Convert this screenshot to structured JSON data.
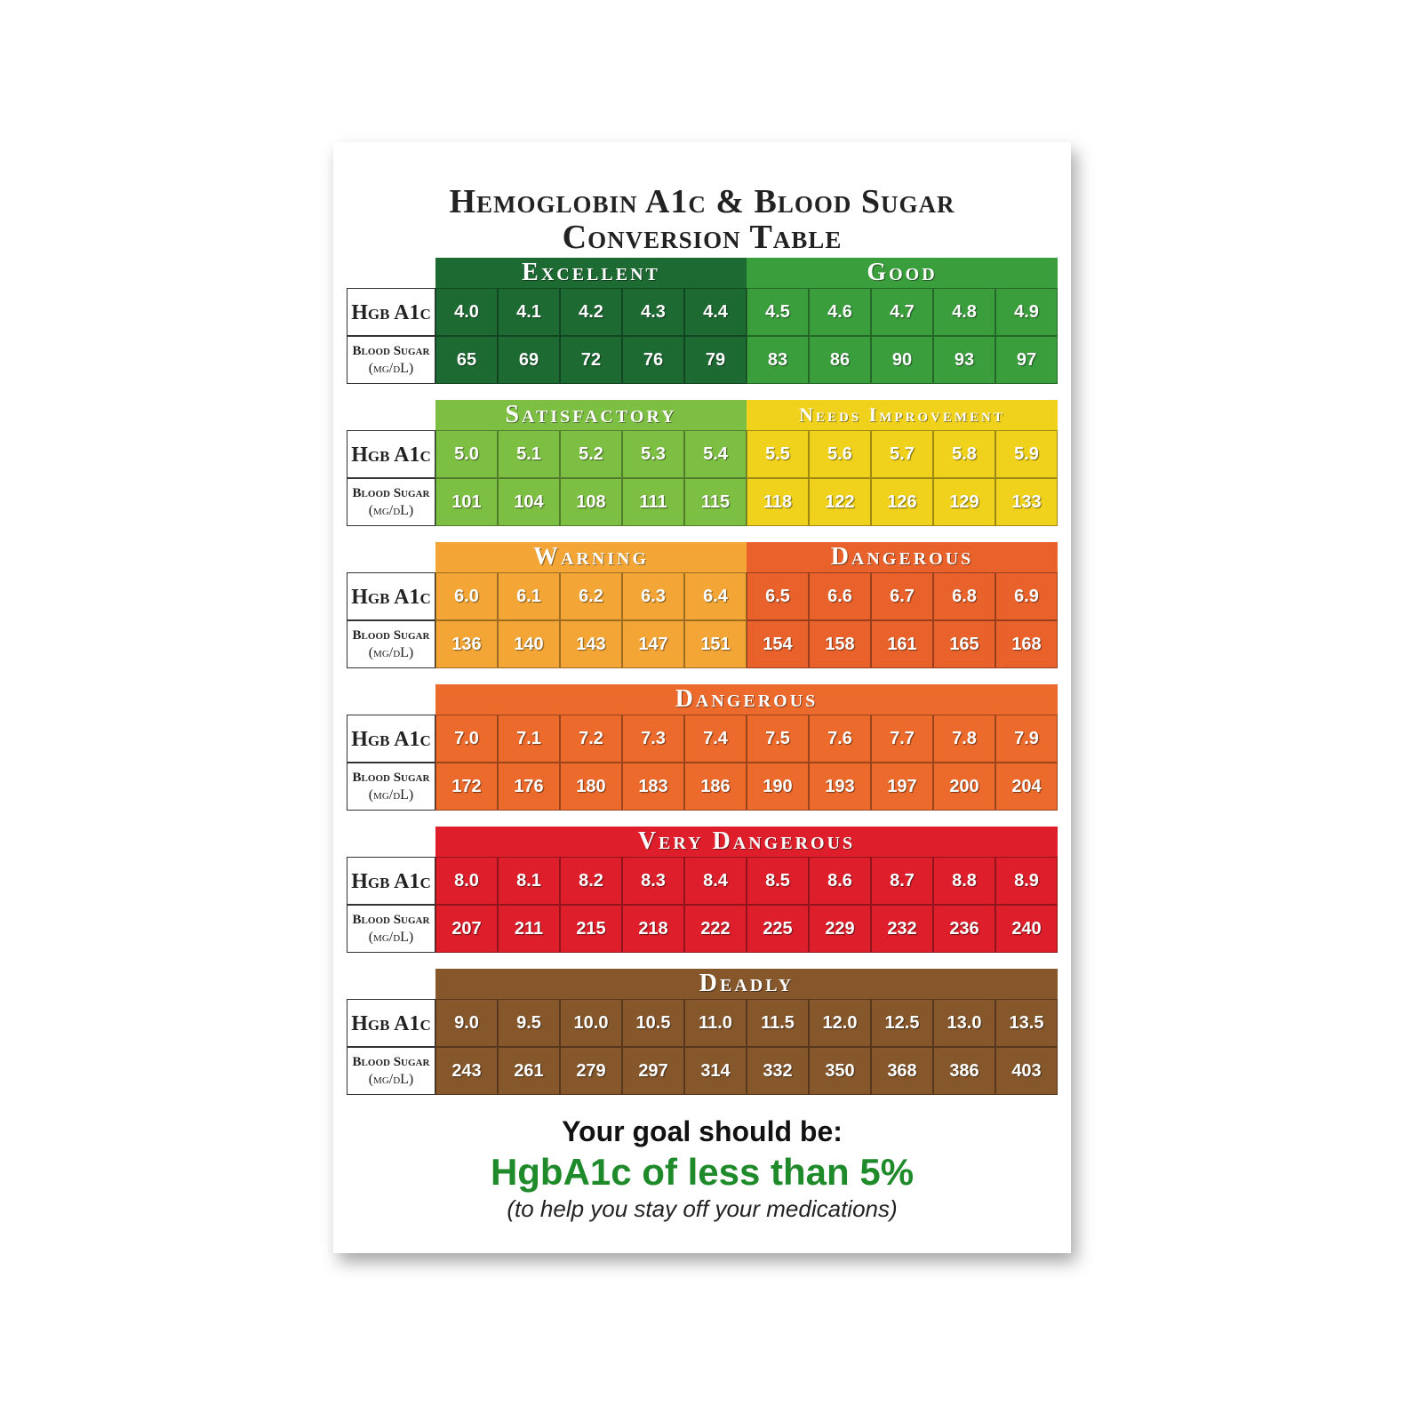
{
  "title": [
    "Hemoglobin A1c & Blood Sugar",
    "Conversion Table"
  ],
  "row_labels": {
    "hgb": "Hgb A1c",
    "sugar": "Blood Sugar",
    "unit": "(mg/dL)"
  },
  "blocks": [
    {
      "groups": [
        {
          "label": "Excellent",
          "color": "#1d6b33",
          "hgb": [
            "4.0",
            "4.1",
            "4.2",
            "4.3",
            "4.4"
          ],
          "sugar": [
            "65",
            "69",
            "72",
            "76",
            "79"
          ]
        },
        {
          "label": "Good",
          "color": "#3a9e3d",
          "hgb": [
            "4.5",
            "4.6",
            "4.7",
            "4.8",
            "4.9"
          ],
          "sugar": [
            "83",
            "86",
            "90",
            "93",
            "97"
          ]
        }
      ]
    },
    {
      "groups": [
        {
          "label": "Satisfactory",
          "color": "#7dbf43",
          "hgb": [
            "5.0",
            "5.1",
            "5.2",
            "5.3",
            "5.4"
          ],
          "sugar": [
            "101",
            "104",
            "108",
            "111",
            "115"
          ]
        },
        {
          "label": "Needs Improvement",
          "color": "#f0d11c",
          "hgb": [
            "5.5",
            "5.6",
            "5.7",
            "5.8",
            "5.9"
          ],
          "sugar": [
            "118",
            "122",
            "126",
            "129",
            "133"
          ]
        }
      ]
    },
    {
      "groups": [
        {
          "label": "Warning",
          "color": "#f3a535",
          "hgb": [
            "6.0",
            "6.1",
            "6.2",
            "6.3",
            "6.4"
          ],
          "sugar": [
            "136",
            "140",
            "143",
            "147",
            "151"
          ]
        },
        {
          "label": "Dangerous",
          "color": "#e9622b",
          "hgb": [
            "6.5",
            "6.6",
            "6.7",
            "6.8",
            "6.9"
          ],
          "sugar": [
            "154",
            "158",
            "161",
            "165",
            "168"
          ]
        }
      ]
    },
    {
      "groups": [
        {
          "label": "Dangerous",
          "color": "#ec6a2b",
          "hgb": [
            "7.0",
            "7.1",
            "7.2",
            "7.3",
            "7.4",
            "7.5",
            "7.6",
            "7.7",
            "7.8",
            "7.9"
          ],
          "sugar": [
            "172",
            "176",
            "180",
            "183",
            "186",
            "190",
            "193",
            "197",
            "200",
            "204"
          ]
        }
      ]
    },
    {
      "groups": [
        {
          "label": "Very Dangerous",
          "color": "#de1f2b",
          "hgb": [
            "8.0",
            "8.1",
            "8.2",
            "8.3",
            "8.4",
            "8.5",
            "8.6",
            "8.7",
            "8.8",
            "8.9"
          ],
          "sugar": [
            "207",
            "211",
            "215",
            "218",
            "222",
            "225",
            "229",
            "232",
            "236",
            "240"
          ]
        }
      ]
    },
    {
      "groups": [
        {
          "label": "Deadly",
          "color": "#86572b",
          "hgb": [
            "9.0",
            "9.5",
            "10.0",
            "10.5",
            "11.0",
            "11.5",
            "12.0",
            "12.5",
            "13.0",
            "13.5"
          ],
          "sugar": [
            "243",
            "261",
            "279",
            "297",
            "314",
            "332",
            "350",
            "368",
            "386",
            "403"
          ]
        }
      ]
    }
  ],
  "goal": {
    "intro": "Your goal should be:",
    "target": "HgbA1c of less than 5%",
    "note": "(to help you stay off your medications)"
  }
}
